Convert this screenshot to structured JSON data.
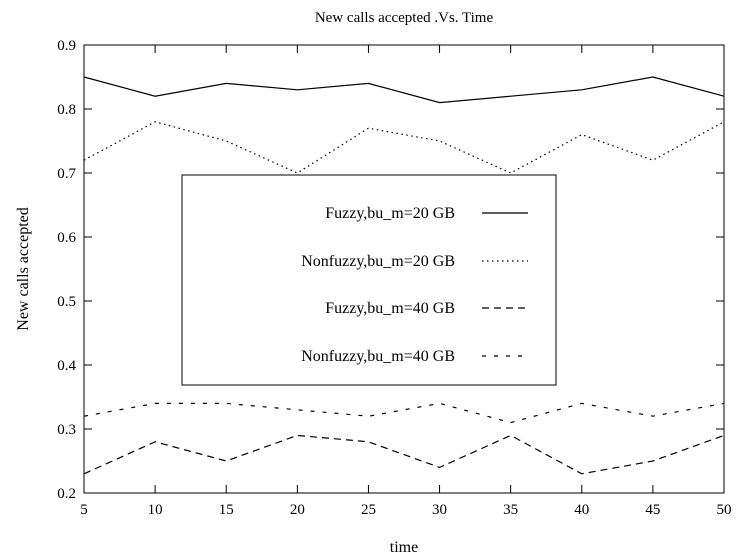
{
  "chart_data": {
    "type": "line",
    "title": "New calls accepted .Vs. Time",
    "xlabel": "time",
    "ylabel": "New calls accepted",
    "xlim": [
      5,
      50
    ],
    "ylim": [
      0.2,
      0.9
    ],
    "xticks": [
      5,
      10,
      15,
      20,
      25,
      30,
      35,
      40,
      45,
      50
    ],
    "yticks": [
      0.2,
      0.3,
      0.4,
      0.5,
      0.6,
      0.7,
      0.8,
      0.9
    ],
    "grid": false,
    "legend_position": "center-left",
    "x": [
      5,
      10,
      15,
      20,
      25,
      30,
      35,
      40,
      45,
      50
    ],
    "series": [
      {
        "name": "Fuzzy,bu_m=20 GB",
        "style": "solid",
        "values": [
          0.85,
          0.82,
          0.84,
          0.83,
          0.84,
          0.81,
          0.82,
          0.83,
          0.85,
          0.82
        ]
      },
      {
        "name": "Nonfuzzy,bu_m=20 GB",
        "style": "dotted",
        "values": [
          0.72,
          0.78,
          0.75,
          0.7,
          0.77,
          0.75,
          0.7,
          0.76,
          0.72,
          0.78
        ]
      },
      {
        "name": "Fuzzy,bu_m=40 GB",
        "style": "dashed",
        "values": [
          0.23,
          0.28,
          0.25,
          0.29,
          0.28,
          0.24,
          0.29,
          0.23,
          0.25,
          0.29
        ]
      },
      {
        "name": "Nonfuzzy,bu_m=40 GB",
        "style": "short-dashed",
        "values": [
          0.32,
          0.34,
          0.34,
          0.33,
          0.32,
          0.34,
          0.31,
          0.34,
          0.32,
          0.34
        ]
      }
    ],
    "colors": {
      "line": "#000000",
      "background": "#ffffff"
    }
  }
}
